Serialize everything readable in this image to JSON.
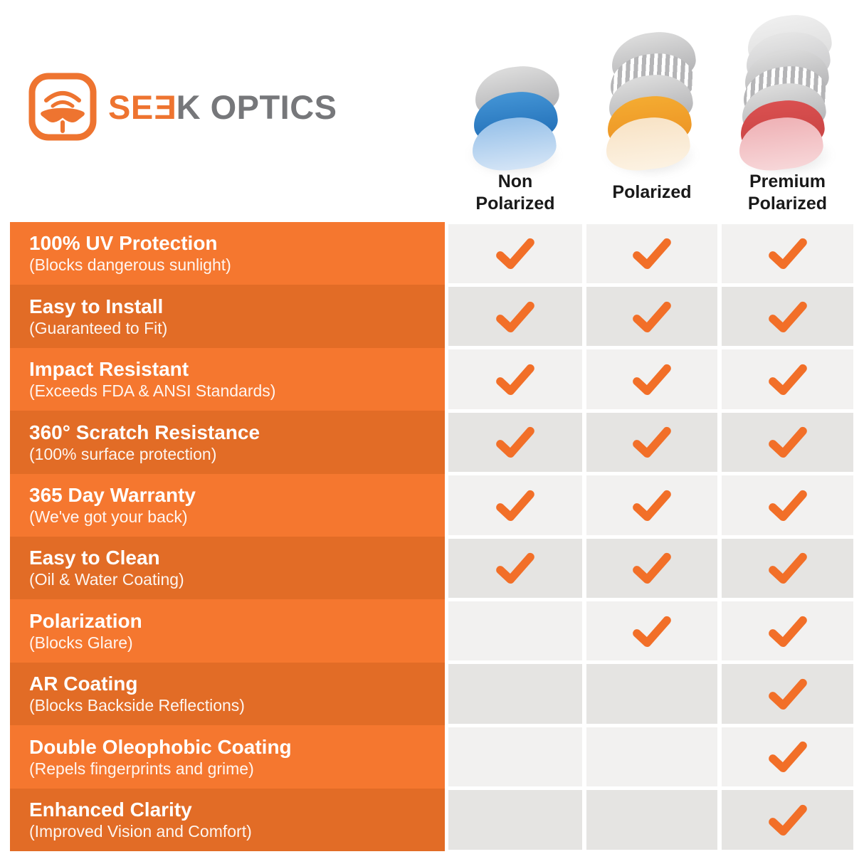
{
  "logo": {
    "brand_prefix": "SE",
    "brand_flipped_letter": "E",
    "brand_suffix": "K OPTICS",
    "icon": "seek-face-sunglasses-icon"
  },
  "columns": [
    {
      "id": "non-polarized",
      "label_lines": [
        "Non",
        "Polarized"
      ],
      "lens_layers": [
        "gray",
        "blue",
        "fade-blue"
      ]
    },
    {
      "id": "polarized",
      "label_lines": [
        "Polarized"
      ],
      "lens_layers": [
        "gray",
        "stripes",
        "gray",
        "orange",
        "fade-orange"
      ]
    },
    {
      "id": "premium-polarized",
      "label_lines": [
        "Premium",
        "Polarized"
      ],
      "lens_layers": [
        "gray-faint",
        "gray-light",
        "gray",
        "stripes",
        "gray",
        "red",
        "fade-red"
      ]
    }
  ],
  "features": [
    {
      "title": "100% UV Protection",
      "subtitle": "(Blocks dangerous sunlight)",
      "checks": [
        true,
        true,
        true
      ]
    },
    {
      "title": "Easy to Install",
      "subtitle": "(Guaranteed to Fit)",
      "checks": [
        true,
        true,
        true
      ]
    },
    {
      "title": "Impact Resistant",
      "subtitle": "(Exceeds FDA & ANSI Standards)",
      "checks": [
        true,
        true,
        true
      ]
    },
    {
      "title": "360° Scratch Resistance",
      "subtitle": "(100% surface protection)",
      "checks": [
        true,
        true,
        true
      ]
    },
    {
      "title": "365 Day Warranty",
      "subtitle": "(We've got your back)",
      "checks": [
        true,
        true,
        true
      ]
    },
    {
      "title": "Easy to Clean",
      "subtitle": "(Oil & Water Coating)",
      "checks": [
        true,
        true,
        true
      ]
    },
    {
      "title": "Polarization",
      "subtitle": "(Blocks Glare)",
      "checks": [
        false,
        true,
        true
      ]
    },
    {
      "title": "AR Coating",
      "subtitle": "(Blocks Backside Reflections)",
      "checks": [
        false,
        false,
        true
      ]
    },
    {
      "title": "Double Oleophobic Coating",
      "subtitle": "(Repels fingerprints and grime)",
      "checks": [
        false,
        false,
        true
      ]
    },
    {
      "title": "Enhanced Clarity",
      "subtitle": "(Improved Vision and Comfort)",
      "checks": [
        false,
        false,
        true
      ]
    }
  ],
  "colors": {
    "row_orange_light": "#f5772f",
    "row_orange_dark": "#e26c26",
    "cell_gray_light": "#f2f1f0",
    "cell_gray_dark": "#e5e4e2",
    "check_orange": "#f26f28",
    "logo_orange": "#ee7430",
    "logo_gray": "#76777a",
    "label_text": "#191919"
  },
  "chart_data": {
    "type": "table",
    "title": "SEEK OPTICS lens feature comparison",
    "categories": [
      "Non Polarized",
      "Polarized",
      "Premium Polarized"
    ],
    "rows": [
      {
        "feature": "100% UV Protection (Blocks dangerous sunlight)",
        "values": [
          true,
          true,
          true
        ]
      },
      {
        "feature": "Easy to Install (Guaranteed to Fit)",
        "values": [
          true,
          true,
          true
        ]
      },
      {
        "feature": "Impact Resistant (Exceeds FDA & ANSI Standards)",
        "values": [
          true,
          true,
          true
        ]
      },
      {
        "feature": "360° Scratch Resistance (100% surface protection)",
        "values": [
          true,
          true,
          true
        ]
      },
      {
        "feature": "365 Day Warranty (We've got your back)",
        "values": [
          true,
          true,
          true
        ]
      },
      {
        "feature": "Easy to Clean (Oil & Water Coating)",
        "values": [
          true,
          true,
          true
        ]
      },
      {
        "feature": "Polarization (Blocks Glare)",
        "values": [
          false,
          true,
          true
        ]
      },
      {
        "feature": "AR Coating (Blocks Backside Reflections)",
        "values": [
          false,
          false,
          true
        ]
      },
      {
        "feature": "Double Oleophobic Coating (Repels fingerprints and grime)",
        "values": [
          false,
          false,
          true
        ]
      },
      {
        "feature": "Enhanced Clarity (Improved Vision and Comfort)",
        "values": [
          false,
          false,
          true
        ]
      }
    ],
    "legend_position": "top",
    "value_marker": "orange checkmark = feature included, blank = not included"
  }
}
